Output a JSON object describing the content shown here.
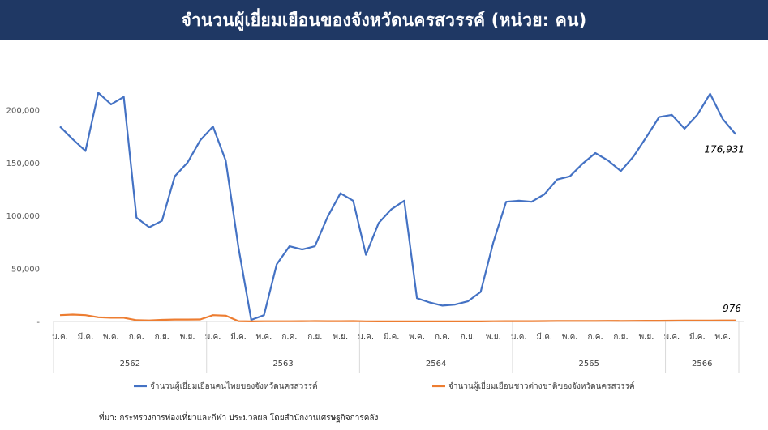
{
  "title": "จำนวนผู้เยี่ยมเยือนของจังหวัดนครสวรรค์ (หน่วย: คน)",
  "source": "ที่มา: กระทรวงการท่องเที่ยวและกีฬา ประมวลผล โดยสำนักงานเศรษฐกิจการคลัง",
  "colors": {
    "title_bg": "#1f3864",
    "thai": "#4472c4",
    "foreign": "#ed7d31"
  },
  "chart_data": {
    "type": "line",
    "title": "",
    "xlabel": "",
    "ylabel": "",
    "ylim": [
      0,
      250000
    ],
    "y_ticks": [
      0,
      50000,
      100000,
      150000,
      200000
    ],
    "y_tick_labels": [
      "-",
      "50,000",
      "100,000",
      "150,000",
      "200,000"
    ],
    "x_tick_labels": [
      "ม.ค.",
      "มี.ค.",
      "พ.ค.",
      "ก.ค.",
      "ก.ย.",
      "พ.ย.",
      "ม.ค.",
      "มี.ค.",
      "พ.ค.",
      "ก.ค.",
      "ก.ย.",
      "พ.ย.",
      "ม.ค.",
      "มี.ค.",
      "พ.ค.",
      "ก.ค.",
      "ก.ย.",
      "พ.ย.",
      "ม.ค.",
      "มี.ค.",
      "พ.ค.",
      "ก.ค.",
      "ก.ย.",
      "พ.ย.",
      "ม.ค.",
      "มี.ค.",
      "พ.ค."
    ],
    "years": [
      {
        "label": "2562",
        "months": 12
      },
      {
        "label": "2563",
        "months": 12
      },
      {
        "label": "2564",
        "months": 12
      },
      {
        "label": "2565",
        "months": 12
      },
      {
        "label": "2566",
        "months": 6
      }
    ],
    "grid": false,
    "legend_position": "bottom",
    "series": [
      {
        "name": "จำนวนผู้เยี่ยมเยือนคนไทยของจังหวัดนครสวรรค์",
        "color": "#4472c4",
        "values": [
          184000,
          172000,
          161000,
          216000,
          205000,
          212000,
          98000,
          89000,
          95000,
          137000,
          150000,
          171000,
          184000,
          152000,
          70000,
          1500,
          6000,
          54000,
          71000,
          68000,
          71000,
          99000,
          121000,
          114000,
          63000,
          93000,
          106000,
          114000,
          22000,
          18000,
          15000,
          16000,
          19000,
          28000,
          75000,
          113000,
          114000,
          113000,
          120000,
          134000,
          137000,
          149000,
          159000,
          152000,
          142000,
          156000,
          174000,
          193000,
          195000,
          182000,
          195000,
          215000,
          191000,
          176931
        ],
        "last_label": "176,931"
      },
      {
        "name": "จำนวนผู้เยี่ยมเยือนชาวต่างชาติของจังหวัดนครสวรรค์",
        "color": "#ed7d31",
        "values": [
          6000,
          6500,
          6000,
          4000,
          3500,
          3500,
          1200,
          1000,
          1500,
          1800,
          1800,
          1900,
          6000,
          5500,
          300,
          100,
          200,
          200,
          250,
          300,
          350,
          300,
          300,
          400,
          150,
          100,
          100,
          100,
          100,
          100,
          100,
          100,
          100,
          100,
          200,
          300,
          300,
          300,
          400,
          500,
          500,
          550,
          550,
          600,
          550,
          600,
          650,
          700,
          800,
          900,
          900,
          950,
          960,
          976
        ],
        "last_label": "976"
      }
    ]
  }
}
